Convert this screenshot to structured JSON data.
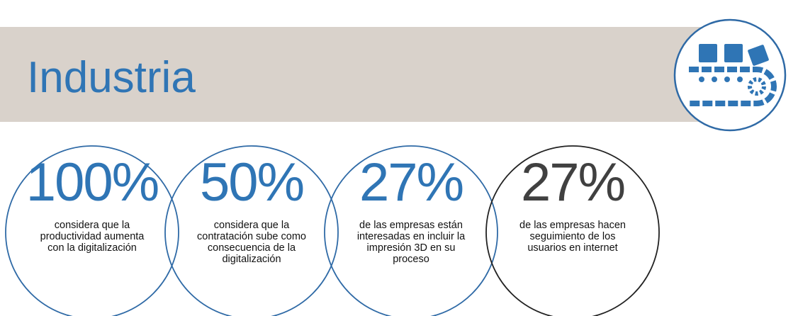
{
  "header": {
    "title": "Industria"
  },
  "stats": [
    {
      "figure": "100%",
      "lines": [
        "considera que la",
        "productividad aumenta",
        "con la digitalización"
      ]
    },
    {
      "figure": "50%",
      "lines": [
        "considera que la",
        "contratación sube como",
        "consecuencia de la",
        "digitalización"
      ]
    },
    {
      "figure": "27%",
      "lines": [
        "de las empresas están",
        "interesadas en incluir la",
        "impresión 3D en su",
        "proceso"
      ]
    },
    {
      "figure": "27%",
      "lines": [
        "de las empresas hacen",
        "seguimiento  de los",
        "usuarios en internet"
      ]
    }
  ]
}
